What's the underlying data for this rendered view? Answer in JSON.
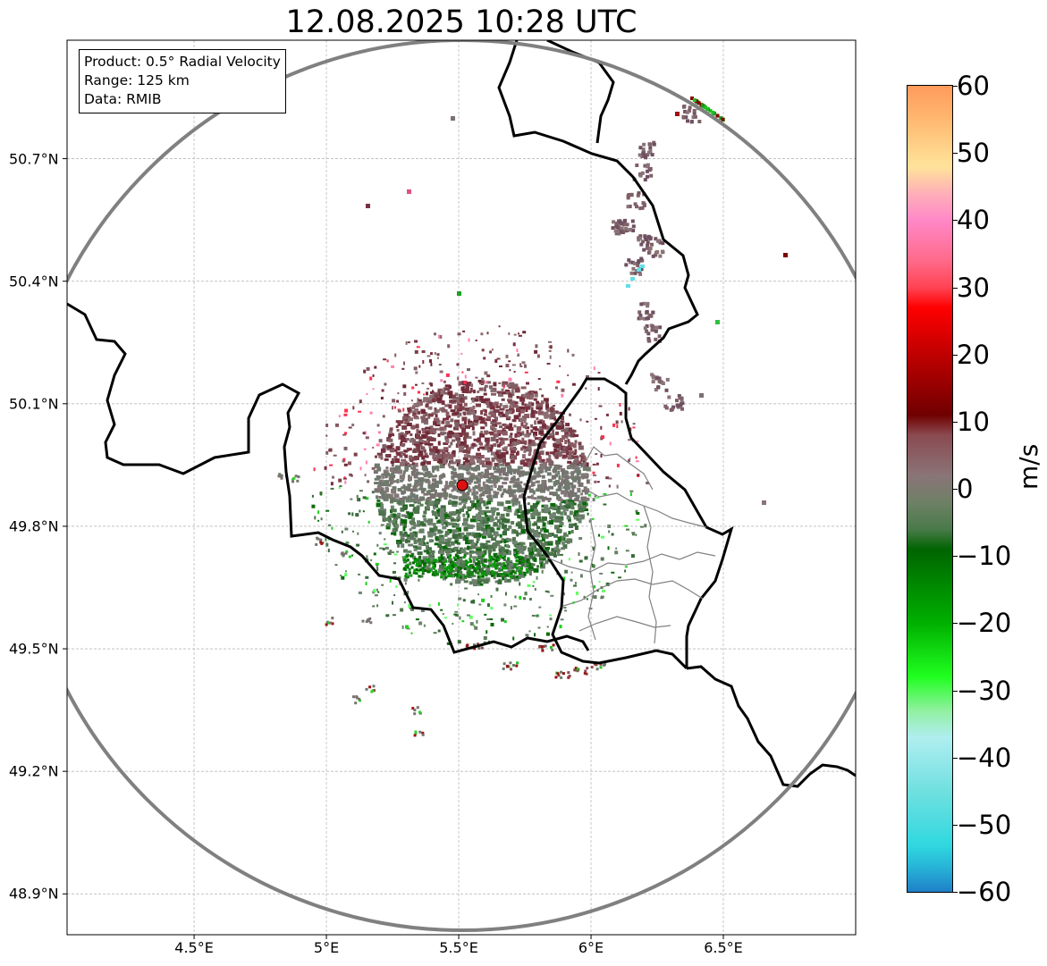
{
  "title": "12.08.2025 10:28 UTC",
  "info_box": {
    "product": "Product: 0.5° Radial Velocity",
    "range": "Range: 125 km",
    "data": "Data: RMIB"
  },
  "map": {
    "type": "radar_ppi",
    "lon_range": [
      4.02,
      7.0
    ],
    "lat_range": [
      48.8,
      50.99
    ],
    "radar_site": {
      "lon": 5.5,
      "lat": 49.91
    },
    "range_ring_km": 125,
    "grid": true,
    "x_ticks": [
      "4.5°E",
      "5°E",
      "5.5°E",
      "6°E",
      "6.5°E"
    ],
    "x_tick_values": [
      4.5,
      5.0,
      5.5,
      6.0,
      6.5
    ],
    "y_ticks": [
      "48.9°N",
      "49.2°N",
      "49.5°N",
      "49.8°N",
      "50.1°N",
      "50.4°N",
      "50.7°N"
    ],
    "y_tick_values": [
      48.9,
      49.2,
      49.5,
      49.8,
      50.1,
      50.4,
      50.7
    ]
  },
  "colorbar": {
    "label": "m/s",
    "range": [
      -60,
      60
    ],
    "ticks": [
      "60",
      "50",
      "40",
      "30",
      "20",
      "10",
      "0",
      "−10",
      "−20",
      "−30",
      "−40",
      "−50",
      "−60"
    ],
    "stops": [
      {
        "v": 60,
        "c": "#ff9a5c"
      },
      {
        "v": 55,
        "c": "#ffb870"
      },
      {
        "v": 48,
        "c": "#ffe39a"
      },
      {
        "v": 44,
        "c": "#ffb0b8"
      },
      {
        "v": 40,
        "c": "#ff88c8"
      },
      {
        "v": 34,
        "c": "#ff6a8a"
      },
      {
        "v": 30,
        "c": "#ff4454"
      },
      {
        "v": 27,
        "c": "#ff0000"
      },
      {
        "v": 20,
        "c": "#c00000"
      },
      {
        "v": 11,
        "c": "#700000"
      },
      {
        "v": 8,
        "c": "#8a4a50"
      },
      {
        "v": 2,
        "c": "#8a7478"
      },
      {
        "v": -2,
        "c": "#6e8066"
      },
      {
        "v": -6,
        "c": "#4a7a4a"
      },
      {
        "v": -9,
        "c": "#006400"
      },
      {
        "v": -20,
        "c": "#00b000"
      },
      {
        "v": -28,
        "c": "#20ff20"
      },
      {
        "v": -33,
        "c": "#90f0a0"
      },
      {
        "v": -37,
        "c": "#b0eef0"
      },
      {
        "v": -45,
        "c": "#70e0e0"
      },
      {
        "v": -53,
        "c": "#30d8e0"
      },
      {
        "v": -56,
        "c": "#28b8d8"
      },
      {
        "v": -60,
        "c": "#1e80c8"
      }
    ]
  },
  "colors": {
    "country_border": "#000000",
    "province_border": "#808080",
    "range_ring": "#808080",
    "radar_marker": "#e01010"
  }
}
